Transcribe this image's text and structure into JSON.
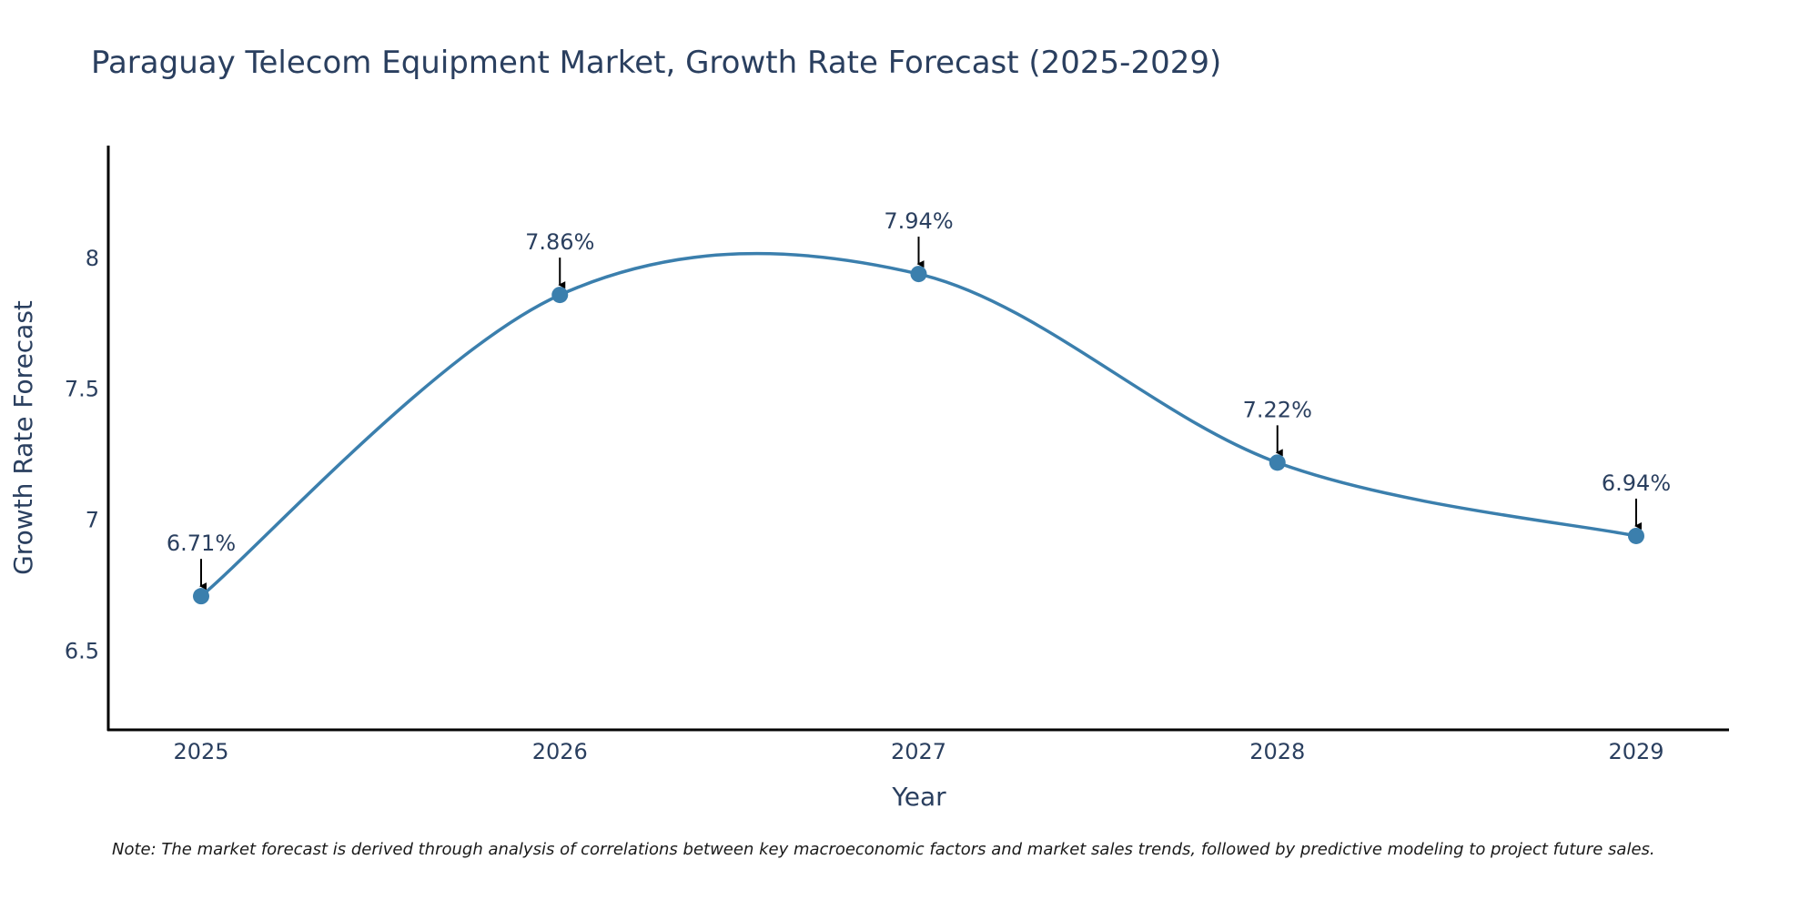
{
  "chart_data": {
    "type": "line",
    "title": "Paraguay Telecom Equipment Market, Growth Rate Forecast (2025-2029)",
    "xlabel": "Year",
    "ylabel": "Growth Rate Forecast",
    "categories": [
      "2025",
      "2026",
      "2027",
      "2028",
      "2029"
    ],
    "series": [
      {
        "name": "Growth Rate Forecast",
        "values": [
          6.71,
          7.86,
          7.94,
          7.22,
          6.94
        ],
        "labels": [
          "6.71%",
          "7.86%",
          "7.94%",
          "7.22%",
          "6.94%"
        ],
        "color": "#3b7fad"
      }
    ],
    "ylim": [
      6.2,
      8.43
    ],
    "yticks": [
      6.5,
      7,
      7.5,
      8
    ],
    "ytick_labels": [
      "6.5",
      "7",
      "7.5",
      "8"
    ],
    "grid": false,
    "line_shape": "spline"
  },
  "note": "Note: The market forecast is derived through analysis of correlations between key macroeconomic factors and market sales trends, followed by predictive modeling to project future sales."
}
